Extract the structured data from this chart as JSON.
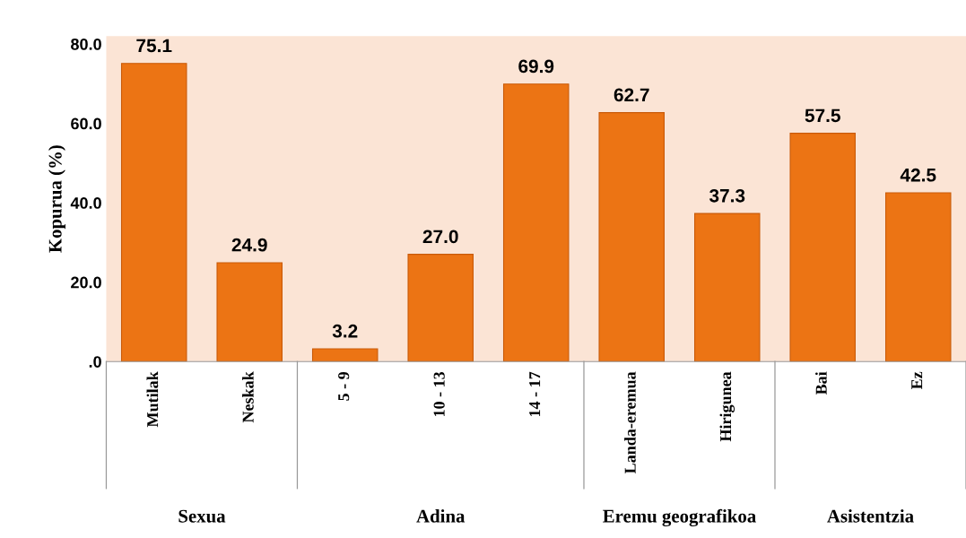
{
  "chart_data": {
    "type": "bar",
    "categories": [
      "Mutilak",
      "Neskak",
      "5 - 9",
      "10 - 13",
      "14 - 17",
      "Landa-eremua",
      "Hirigunea",
      "Bai",
      "Ez"
    ],
    "values": [
      75.1,
      24.9,
      3.2,
      27.0,
      69.9,
      62.7,
      37.3,
      57.5,
      42.5
    ],
    "color": "#ec7414",
    "ylabel": "Kopurua (%)",
    "ylim": [
      0,
      82
    ],
    "yticks": [
      {
        "value": 0,
        "label": ".0"
      },
      {
        "value": 20,
        "label": "20.0"
      },
      {
        "value": 40,
        "label": "40.0"
      },
      {
        "value": 60,
        "label": "60.0"
      },
      {
        "value": 80,
        "label": "80.0"
      }
    ],
    "value_labels": [
      "75.1",
      "24.9",
      "3.2",
      "27.0",
      "69.9",
      "62.7",
      "37.3",
      "57.5",
      "42.5"
    ],
    "grid": false,
    "annotations": [
      "Sexua",
      "Adina",
      "Eremu geografikoa",
      "Asistentzia"
    ]
  }
}
